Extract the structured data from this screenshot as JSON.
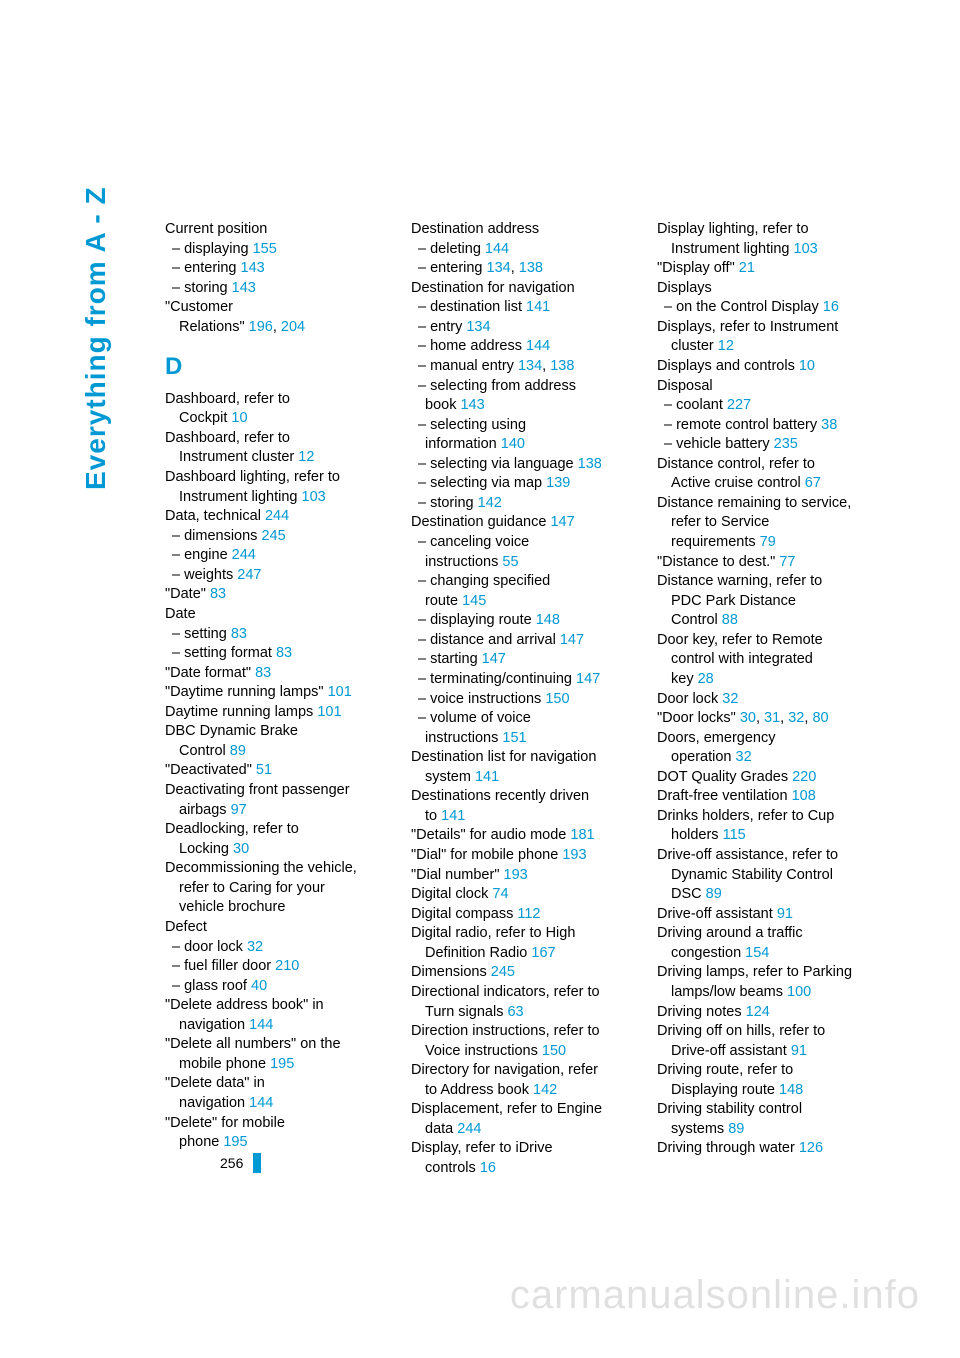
{
  "side_title": "Everything from A - Z",
  "page_number": "256",
  "watermark": "carmanualsonline.info",
  "section_D": "D",
  "link_color": "#0099d4",
  "col1": [
    {
      "t": "Current position"
    },
    {
      "t": "– displaying ",
      "r": "155",
      "sub": true
    },
    {
      "t": "– entering ",
      "r": "143",
      "sub": true
    },
    {
      "t": "– storing ",
      "r": "143",
      "sub": true
    },
    {
      "t": "\"Customer",
      "cont": true
    },
    {
      "t": "Relations\" ",
      "r": "196",
      "r2": "204",
      "sub2": true
    },
    {
      "section": "D"
    },
    {
      "t": "Dashboard, refer to",
      "cont": true
    },
    {
      "t": "Cockpit ",
      "r": "10",
      "sub2": true
    },
    {
      "t": "Dashboard, refer to",
      "cont": true
    },
    {
      "t": "Instrument cluster ",
      "r": "12",
      "sub2": true
    },
    {
      "t": "Dashboard lighting, refer to",
      "cont": true
    },
    {
      "t": "Instrument lighting ",
      "r": "103",
      "sub2": true
    },
    {
      "t": "Data, technical ",
      "r": "244"
    },
    {
      "t": "– dimensions ",
      "r": "245",
      "sub": true
    },
    {
      "t": "– engine ",
      "r": "244",
      "sub": true
    },
    {
      "t": "– weights ",
      "r": "247",
      "sub": true
    },
    {
      "t": "\"Date\" ",
      "r": "83"
    },
    {
      "t": "Date"
    },
    {
      "t": "– setting ",
      "r": "83",
      "sub": true
    },
    {
      "t": "– setting format ",
      "r": "83",
      "sub": true
    },
    {
      "t": "\"Date format\" ",
      "r": "83"
    },
    {
      "t": "\"Daytime running lamps\" ",
      "r": "101"
    },
    {
      "t": "Daytime running lamps ",
      "r": "101"
    },
    {
      "t": "DBC Dynamic Brake",
      "cont": true
    },
    {
      "t": "Control ",
      "r": "89",
      "sub2": true
    },
    {
      "t": "\"Deactivated\" ",
      "r": "51"
    },
    {
      "t": "Deactivating front passenger",
      "cont": true
    },
    {
      "t": "airbags ",
      "r": "97",
      "sub2": true
    },
    {
      "t": "Deadlocking, refer to",
      "cont": true
    },
    {
      "t": "Locking ",
      "r": "30",
      "sub2": true
    },
    {
      "t": "Decommissioning the vehicle,",
      "cont": true
    },
    {
      "t": "refer to Caring for your",
      "sub2": true,
      "cont": true
    },
    {
      "t": "vehicle brochure",
      "sub2": true
    },
    {
      "t": "Defect"
    },
    {
      "t": "– door lock ",
      "r": "32",
      "sub": true
    },
    {
      "t": "– fuel filler door ",
      "r": "210",
      "sub": true
    },
    {
      "t": "– glass roof ",
      "r": "40",
      "sub": true
    },
    {
      "t": "\"Delete address book\" in",
      "cont": true
    },
    {
      "t": "navigation ",
      "r": "144",
      "sub2": true
    },
    {
      "t": "\"Delete all numbers\" on the",
      "cont": true
    },
    {
      "t": "mobile phone ",
      "r": "195",
      "sub2": true
    },
    {
      "t": "\"Delete data\" in",
      "cont": true
    },
    {
      "t": "navigation ",
      "r": "144",
      "sub2": true
    },
    {
      "t": "\"Delete\" for mobile",
      "cont": true
    },
    {
      "t": "phone ",
      "r": "195",
      "sub2": true
    }
  ],
  "col2": [
    {
      "t": "Destination address"
    },
    {
      "t": "– deleting ",
      "r": "144",
      "sub": true
    },
    {
      "t": "– entering ",
      "r": "134",
      "r2": "138",
      "sub": true
    },
    {
      "t": "Destination for navigation"
    },
    {
      "t": "– destination list ",
      "r": "141",
      "sub": true
    },
    {
      "t": "– entry ",
      "r": "134",
      "sub": true
    },
    {
      "t": "– home address ",
      "r": "144",
      "sub": true
    },
    {
      "t": "– manual entry ",
      "r": "134",
      "r2": "138",
      "sub": true
    },
    {
      "t": "– selecting from address",
      "sub": true,
      "cont": true
    },
    {
      "t": "book ",
      "r": "143",
      "sub2": true
    },
    {
      "t": "– selecting using",
      "sub": true,
      "cont": true
    },
    {
      "t": "information ",
      "r": "140",
      "sub2": true
    },
    {
      "t": "– selecting via language ",
      "r": "138",
      "sub": true
    },
    {
      "t": "– selecting via map ",
      "r": "139",
      "sub": true
    },
    {
      "t": "– storing ",
      "r": "142",
      "sub": true
    },
    {
      "t": "Destination guidance ",
      "r": "147"
    },
    {
      "t": "– canceling voice",
      "sub": true,
      "cont": true
    },
    {
      "t": "instructions ",
      "r": "55",
      "sub2": true
    },
    {
      "t": "– changing specified",
      "sub": true,
      "cont": true
    },
    {
      "t": "route ",
      "r": "145",
      "sub2": true
    },
    {
      "t": "– displaying route ",
      "r": "148",
      "sub": true
    },
    {
      "t": "– distance and arrival ",
      "r": "147",
      "sub": true
    },
    {
      "t": "– starting ",
      "r": "147",
      "sub": true
    },
    {
      "t": "– terminating/continuing ",
      "r": "147",
      "sub": true
    },
    {
      "t": "– voice instructions ",
      "r": "150",
      "sub": true
    },
    {
      "t": "– volume of voice",
      "sub": true,
      "cont": true
    },
    {
      "t": "instructions ",
      "r": "151",
      "sub2": true
    },
    {
      "t": "Destination list for navigation",
      "cont": true
    },
    {
      "t": "system ",
      "r": "141",
      "sub2": true
    },
    {
      "t": "Destinations recently driven",
      "cont": true
    },
    {
      "t": "to ",
      "r": "141",
      "sub2": true
    },
    {
      "t": "\"Details\" for audio mode ",
      "r": "181"
    },
    {
      "t": "\"Dial\" for mobile phone ",
      "r": "193"
    },
    {
      "t": "\"Dial number\" ",
      "r": "193"
    },
    {
      "t": "Digital clock ",
      "r": "74"
    },
    {
      "t": "Digital compass ",
      "r": "112"
    },
    {
      "t": "Digital radio, refer to High",
      "cont": true
    },
    {
      "t": "Definition Radio ",
      "r": "167",
      "sub2": true
    },
    {
      "t": "Dimensions ",
      "r": "245"
    },
    {
      "t": "Directional indicators, refer to",
      "cont": true
    },
    {
      "t": "Turn signals ",
      "r": "63",
      "sub2": true
    },
    {
      "t": "Direction instructions, refer to",
      "cont": true
    },
    {
      "t": "Voice instructions ",
      "r": "150",
      "sub2": true
    },
    {
      "t": "Directory for navigation, refer",
      "cont": true
    },
    {
      "t": "to Address book ",
      "r": "142",
      "sub2": true
    },
    {
      "t": "Displacement, refer to Engine",
      "cont": true
    },
    {
      "t": "data ",
      "r": "244",
      "sub2": true
    },
    {
      "t": "Display, refer to iDrive",
      "cont": true
    },
    {
      "t": "controls ",
      "r": "16",
      "sub2": true
    }
  ],
  "col3": [
    {
      "t": "Display lighting, refer to",
      "cont": true
    },
    {
      "t": "Instrument lighting ",
      "r": "103",
      "sub2": true
    },
    {
      "t": "\"Display off\" ",
      "r": "21"
    },
    {
      "t": "Displays"
    },
    {
      "t": "– on the Control Display ",
      "r": "16",
      "sub": true
    },
    {
      "t": "Displays, refer to Instrument",
      "cont": true
    },
    {
      "t": "cluster ",
      "r": "12",
      "sub2": true
    },
    {
      "t": "Displays and controls ",
      "r": "10"
    },
    {
      "t": "Disposal"
    },
    {
      "t": "– coolant ",
      "r": "227",
      "sub": true
    },
    {
      "t": "– remote control battery ",
      "r": "38",
      "sub": true
    },
    {
      "t": "– vehicle battery ",
      "r": "235",
      "sub": true
    },
    {
      "t": "Distance control, refer to",
      "cont": true
    },
    {
      "t": "Active cruise control ",
      "r": "67",
      "sub2": true
    },
    {
      "t": "Distance remaining to service,",
      "cont": true
    },
    {
      "t": "refer to Service",
      "sub2": true,
      "cont": true
    },
    {
      "t": "requirements ",
      "r": "79",
      "sub2": true
    },
    {
      "t": "\"Distance to dest.\" ",
      "r": "77"
    },
    {
      "t": "Distance warning, refer to",
      "cont": true
    },
    {
      "t": "PDC Park Distance",
      "sub2": true,
      "cont": true
    },
    {
      "t": "Control ",
      "r": "88",
      "sub2": true
    },
    {
      "t": "Door key, refer to Remote",
      "cont": true
    },
    {
      "t": "control with integrated",
      "sub2": true,
      "cont": true
    },
    {
      "t": "key ",
      "r": "28",
      "sub2": true
    },
    {
      "t": "Door lock ",
      "r": "32"
    },
    {
      "t": "\"Door locks\" ",
      "r": "30",
      "r2": "31",
      "r3": "32",
      "r4": "80"
    },
    {
      "t": "Doors, emergency",
      "cont": true
    },
    {
      "t": "operation ",
      "r": "32",
      "sub2": true
    },
    {
      "t": "DOT Quality Grades ",
      "r": "220"
    },
    {
      "t": "Draft-free ventilation ",
      "r": "108"
    },
    {
      "t": "Drinks holders, refer to Cup",
      "cont": true
    },
    {
      "t": "holders ",
      "r": "115",
      "sub2": true
    },
    {
      "t": "Drive-off assistance, refer to",
      "cont": true
    },
    {
      "t": "Dynamic Stability Control",
      "sub2": true,
      "cont": true
    },
    {
      "t": "DSC ",
      "r": "89",
      "sub2": true
    },
    {
      "t": "Drive-off assistant ",
      "r": "91"
    },
    {
      "t": "Driving around a traffic",
      "cont": true
    },
    {
      "t": "congestion ",
      "r": "154",
      "sub2": true
    },
    {
      "t": "Driving lamps, refer to Parking",
      "cont": true
    },
    {
      "t": "lamps/low beams ",
      "r": "100",
      "sub2": true
    },
    {
      "t": "Driving notes ",
      "r": "124"
    },
    {
      "t": "Driving off on hills, refer to",
      "cont": true
    },
    {
      "t": "Drive-off assistant ",
      "r": "91",
      "sub2": true
    },
    {
      "t": "Driving route, refer to",
      "cont": true
    },
    {
      "t": "Displaying route ",
      "r": "148",
      "sub2": true
    },
    {
      "t": "Driving stability control",
      "cont": true
    },
    {
      "t": "systems ",
      "r": "89",
      "sub2": true
    },
    {
      "t": "Driving through water ",
      "r": "126"
    }
  ]
}
